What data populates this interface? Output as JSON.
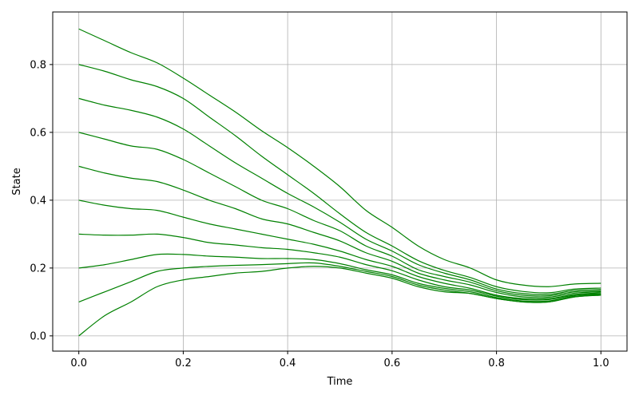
{
  "chart_data": {
    "type": "line",
    "title": "",
    "xlabel": "Time",
    "ylabel": "State",
    "xlim": [
      -0.05,
      1.05
    ],
    "ylim": [
      -0.045,
      0.955
    ],
    "x_ticks": [
      0.0,
      0.2,
      0.4,
      0.6,
      0.8,
      1.0
    ],
    "x_tick_labels": [
      "0.0",
      "0.2",
      "0.4",
      "0.6",
      "0.8",
      "1.0"
    ],
    "y_ticks": [
      0.0,
      0.2,
      0.4,
      0.6,
      0.8
    ],
    "y_tick_labels": [
      "0.0",
      "0.2",
      "0.4",
      "0.6",
      "0.8"
    ],
    "grid": true,
    "line_color": "#008000",
    "x": [
      0.0,
      0.05,
      0.1,
      0.15,
      0.2,
      0.25,
      0.3,
      0.35,
      0.4,
      0.45,
      0.5,
      0.55,
      0.6,
      0.65,
      0.7,
      0.75,
      0.8,
      0.85,
      0.9,
      0.95,
      1.0
    ],
    "series": [
      {
        "values": [
          0.0,
          0.06,
          0.1,
          0.145,
          0.165,
          0.175,
          0.185,
          0.19,
          0.2,
          0.205,
          0.2,
          0.185,
          0.17,
          0.145,
          0.13,
          0.125,
          0.11,
          0.1,
          0.1,
          0.115,
          0.12
        ]
      },
      {
        "values": [
          0.1,
          0.13,
          0.16,
          0.19,
          0.2,
          0.205,
          0.208,
          0.21,
          0.213,
          0.215,
          0.205,
          0.19,
          0.175,
          0.15,
          0.135,
          0.125,
          0.11,
          0.1,
          0.1,
          0.115,
          0.12
        ]
      },
      {
        "values": [
          0.2,
          0.21,
          0.225,
          0.24,
          0.24,
          0.235,
          0.232,
          0.228,
          0.228,
          0.225,
          0.213,
          0.195,
          0.18,
          0.155,
          0.14,
          0.13,
          0.113,
          0.103,
          0.103,
          0.117,
          0.122
        ]
      },
      {
        "values": [
          0.3,
          0.297,
          0.297,
          0.3,
          0.29,
          0.275,
          0.268,
          0.26,
          0.255,
          0.245,
          0.232,
          0.21,
          0.192,
          0.165,
          0.145,
          0.135,
          0.117,
          0.107,
          0.107,
          0.12,
          0.124
        ]
      },
      {
        "values": [
          0.4,
          0.385,
          0.375,
          0.37,
          0.35,
          0.33,
          0.315,
          0.3,
          0.285,
          0.27,
          0.25,
          0.225,
          0.205,
          0.175,
          0.155,
          0.14,
          0.12,
          0.11,
          0.11,
          0.122,
          0.127
        ]
      },
      {
        "values": [
          0.5,
          0.48,
          0.465,
          0.455,
          0.43,
          0.4,
          0.375,
          0.345,
          0.33,
          0.305,
          0.28,
          0.245,
          0.22,
          0.185,
          0.165,
          0.15,
          0.128,
          0.115,
          0.114,
          0.126,
          0.13
        ]
      },
      {
        "values": [
          0.6,
          0.58,
          0.56,
          0.55,
          0.52,
          0.48,
          0.44,
          0.4,
          0.375,
          0.34,
          0.31,
          0.265,
          0.235,
          0.195,
          0.175,
          0.158,
          0.133,
          0.12,
          0.118,
          0.13,
          0.133
        ]
      },
      {
        "values": [
          0.7,
          0.68,
          0.665,
          0.645,
          0.61,
          0.56,
          0.51,
          0.465,
          0.42,
          0.38,
          0.335,
          0.285,
          0.25,
          0.21,
          0.185,
          0.165,
          0.138,
          0.125,
          0.122,
          0.134,
          0.137
        ]
      },
      {
        "values": [
          0.8,
          0.78,
          0.755,
          0.735,
          0.7,
          0.645,
          0.59,
          0.53,
          0.475,
          0.42,
          0.36,
          0.305,
          0.265,
          0.222,
          0.193,
          0.172,
          0.145,
          0.131,
          0.127,
          0.138,
          0.141
        ]
      },
      {
        "values": [
          0.905,
          0.87,
          0.835,
          0.805,
          0.76,
          0.71,
          0.66,
          0.605,
          0.555,
          0.5,
          0.44,
          0.37,
          0.32,
          0.265,
          0.225,
          0.2,
          0.165,
          0.15,
          0.145,
          0.153,
          0.155
        ]
      }
    ]
  }
}
